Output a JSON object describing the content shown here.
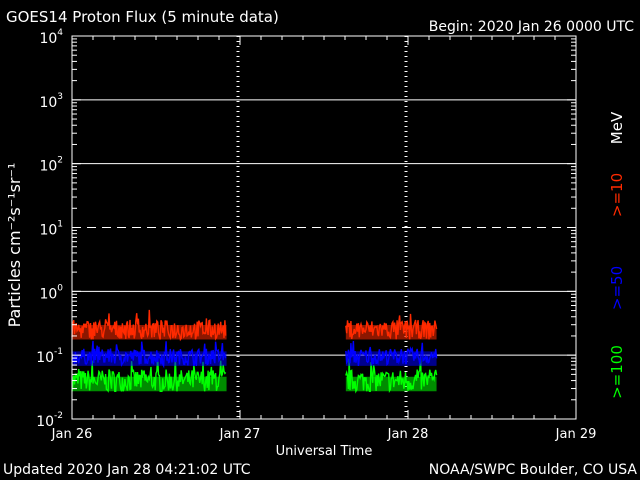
{
  "chart_data": {
    "type": "line",
    "title": "GOES14 Proton Flux (5 minute data)",
    "begin_label": "Begin: 2020 Jan 26 0000 UTC",
    "xlabel": "Universal Time",
    "ylabel": "Particles cm⁻²s⁻¹sr⁻¹",
    "x_ticks": [
      "Jan 26",
      "Jan 27",
      "Jan 28",
      "Jan 29"
    ],
    "x_range_days": [
      0,
      3
    ],
    "y_scale": "log",
    "y_ticks": [
      {
        "base": "10",
        "exp": "4"
      },
      {
        "base": "10",
        "exp": "3"
      },
      {
        "base": "10",
        "exp": "2"
      },
      {
        "base": "10",
        "exp": "1"
      },
      {
        "base": "10",
        "exp": "0"
      },
      {
        "base": "10",
        "exp": "-1"
      },
      {
        "base": "10",
        "exp": "-2"
      }
    ],
    "ylim": [
      0.01,
      10000
    ],
    "grid": {
      "solid": [
        1000,
        100,
        1,
        0.1
      ],
      "dashed": [
        10
      ]
    },
    "units_label": "MeV",
    "series": [
      {
        "name": ">=10",
        "color": "#ff2a00",
        "base": 0.22,
        "spread": 0.3
      },
      {
        "name": ">=50",
        "color": "#0000ff",
        "base": 0.085,
        "spread": 0.25
      },
      {
        "name": ">=100",
        "color": "#00ff00",
        "base": 0.034,
        "spread": 0.35
      }
    ],
    "data_segments": [
      [
        0.0,
        0.92
      ],
      [
        1.63,
        2.17
      ]
    ],
    "footer_left": "Updated 2020 Jan 28 04:21:02 UTC",
    "footer_right": "NOAA/SWPC Boulder, CO USA"
  }
}
